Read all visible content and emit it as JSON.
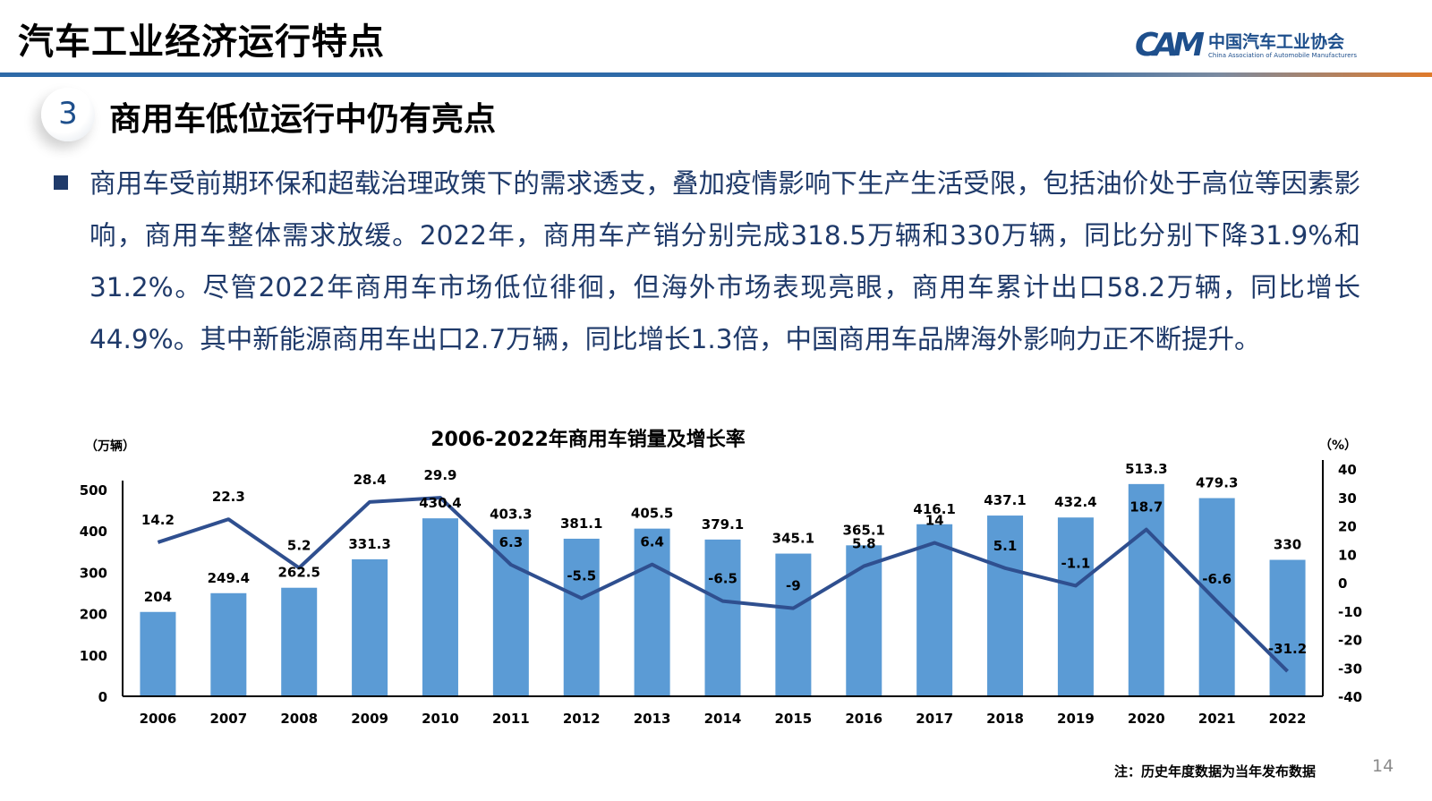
{
  "header": {
    "title": "汽车工业经济运行特点",
    "logo": {
      "mark": "CAM",
      "name_cn": "中国汽车工业协会",
      "name_en": "China Association of Automobile Manufacturers"
    }
  },
  "section": {
    "number": "3",
    "title": "商用车低位运行中仍有亮点"
  },
  "body": {
    "paragraph": "商用车受前期环保和超载治理政策下的需求透支，叠加疫情影响下生产生活受限，包括油价处于高位等因素影响，商用车整体需求放缓。2022年，商用车产销分别完成318.5万辆和330万辆，同比分别下降31.9%和31.2%。尽管2022年商用车市场低位徘徊，但海外市场表现亮眼，商用车累计出口58.2万辆，同比增长44.9%。其中新能源商用车出口2.7万辆，同比增长1.3倍，中国商用车品牌海外影响力正不断提升。"
  },
  "chart_data": {
    "type": "bar+line",
    "title": "2006-2022年商用车销量及增长率",
    "ylabel_left": "（万辆）",
    "ylabel_right": "（%）",
    "categories": [
      "2006",
      "2007",
      "2008",
      "2009",
      "2010",
      "2011",
      "2012",
      "2013",
      "2014",
      "2015",
      "2016",
      "2017",
      "2018",
      "2019",
      "2020",
      "2021",
      "2022"
    ],
    "series": [
      {
        "type": "bar",
        "axis": "left",
        "values": [
          204,
          249.4,
          262.5,
          331.3,
          430.4,
          403.3,
          381.1,
          405.5,
          379.1,
          345.1,
          365.1,
          416.1,
          437.1,
          432.4,
          513.3,
          479.3,
          330
        ]
      },
      {
        "type": "line",
        "axis": "right",
        "values": [
          14.2,
          22.3,
          5.2,
          28.4,
          29.9,
          6.3,
          -5.5,
          6.4,
          -6.5,
          -9,
          5.8,
          14,
          5.1,
          -1.1,
          18.7,
          -6.6,
          -31.2
        ]
      }
    ],
    "ylim_left": [
      0,
      500
    ],
    "yticks_left": [
      "0",
      "100",
      "200",
      "300",
      "400",
      "500"
    ],
    "ylim_right": [
      -40,
      40
    ],
    "yticks_right": [
      "-40",
      "-30",
      "-20",
      "-10",
      "0",
      "10",
      "20",
      "30",
      "40"
    ],
    "grid": false,
    "colors": {
      "bar": "#5b9bd5",
      "line": "#2f4f8f"
    }
  },
  "footer": {
    "note": "注：历史年度数据为当年发布数据",
    "page": "14"
  }
}
